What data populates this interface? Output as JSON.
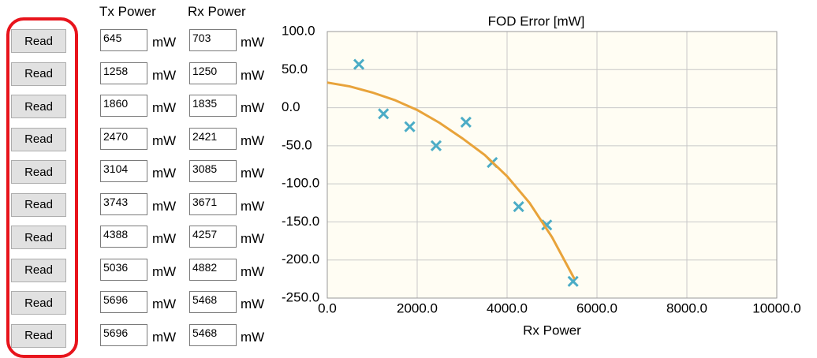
{
  "form": {
    "headers": [
      "Tx Power",
      "Rx Power"
    ],
    "rows": [
      {
        "button": "Read",
        "tx": 645,
        "tx_unit": "mW",
        "rx": 703,
        "rx_unit": "mW"
      },
      {
        "button": "Read",
        "tx": 1258,
        "tx_unit": "mW",
        "rx": 1250,
        "rx_unit": "mW"
      },
      {
        "button": "Read",
        "tx": 1860,
        "tx_unit": "mW",
        "rx": 1835,
        "rx_unit": "mW"
      },
      {
        "button": "Read",
        "tx": 2470,
        "tx_unit": "mW",
        "rx": 2421,
        "rx_unit": "mW"
      },
      {
        "button": "Read",
        "tx": 3104,
        "tx_unit": "mW",
        "rx": 3085,
        "rx_unit": "mW"
      },
      {
        "button": "Read",
        "tx": 3743,
        "tx_unit": "mW",
        "rx": 3671,
        "rx_unit": "mW"
      },
      {
        "button": "Read",
        "tx": 4388,
        "tx_unit": "mW",
        "rx": 4257,
        "rx_unit": "mW"
      },
      {
        "button": "Read",
        "tx": 5036,
        "tx_unit": "mW",
        "rx": 4882,
        "rx_unit": "mW"
      },
      {
        "button": "Read",
        "tx": 5696,
        "tx_unit": "mW",
        "rx": 5468,
        "rx_unit": "mW"
      },
      {
        "button": "Read",
        "tx": 5696,
        "tx_unit": "mW",
        "rx": 5468,
        "rx_unit": "mW"
      }
    ]
  },
  "chart_data": {
    "type": "scatter",
    "title": "FOD Error [mW]",
    "x_label": "Rx Power",
    "xlim": [
      0,
      10000
    ],
    "ylim": [
      -250,
      100
    ],
    "grid": true,
    "xticks": [
      {
        "value": 0,
        "label": "0.0"
      },
      {
        "value": 2000,
        "label": "2000.0"
      },
      {
        "value": 4000,
        "label": "4000.0"
      },
      {
        "value": 6000,
        "label": "6000.0"
      },
      {
        "value": 8000,
        "label": "8000.0"
      },
      {
        "value": 10000,
        "label": "10000.0"
      }
    ],
    "yticks": [
      {
        "value": 100,
        "label": "100.0"
      },
      {
        "value": 50,
        "label": "50.0"
      },
      {
        "value": 0,
        "label": "0.0"
      },
      {
        "value": -50,
        "label": "-50.0"
      },
      {
        "value": -100,
        "label": "-100.0"
      },
      {
        "value": -150,
        "label": "-150.0"
      },
      {
        "value": -200,
        "label": "-200.0"
      },
      {
        "value": -250,
        "label": "-250.0"
      }
    ],
    "series": [
      {
        "mode": "markers",
        "color": "#4bacc6",
        "x": [
          703,
          1250,
          1835,
          2421,
          3085,
          3671,
          4257,
          4882,
          5468
        ],
        "values": [
          57,
          -8,
          -25,
          -50,
          -19,
          -72,
          -130,
          -154,
          -228
        ]
      },
      {
        "mode": "line",
        "color": "#e8a33a",
        "x": [
          0,
          500,
          1000,
          1500,
          2000,
          2500,
          3000,
          3500,
          4000,
          4500,
          5000,
          5500
        ],
        "values": [
          33,
          28,
          20,
          10,
          -3,
          -20,
          -40,
          -62,
          -90,
          -125,
          -170,
          -225
        ]
      }
    ]
  }
}
